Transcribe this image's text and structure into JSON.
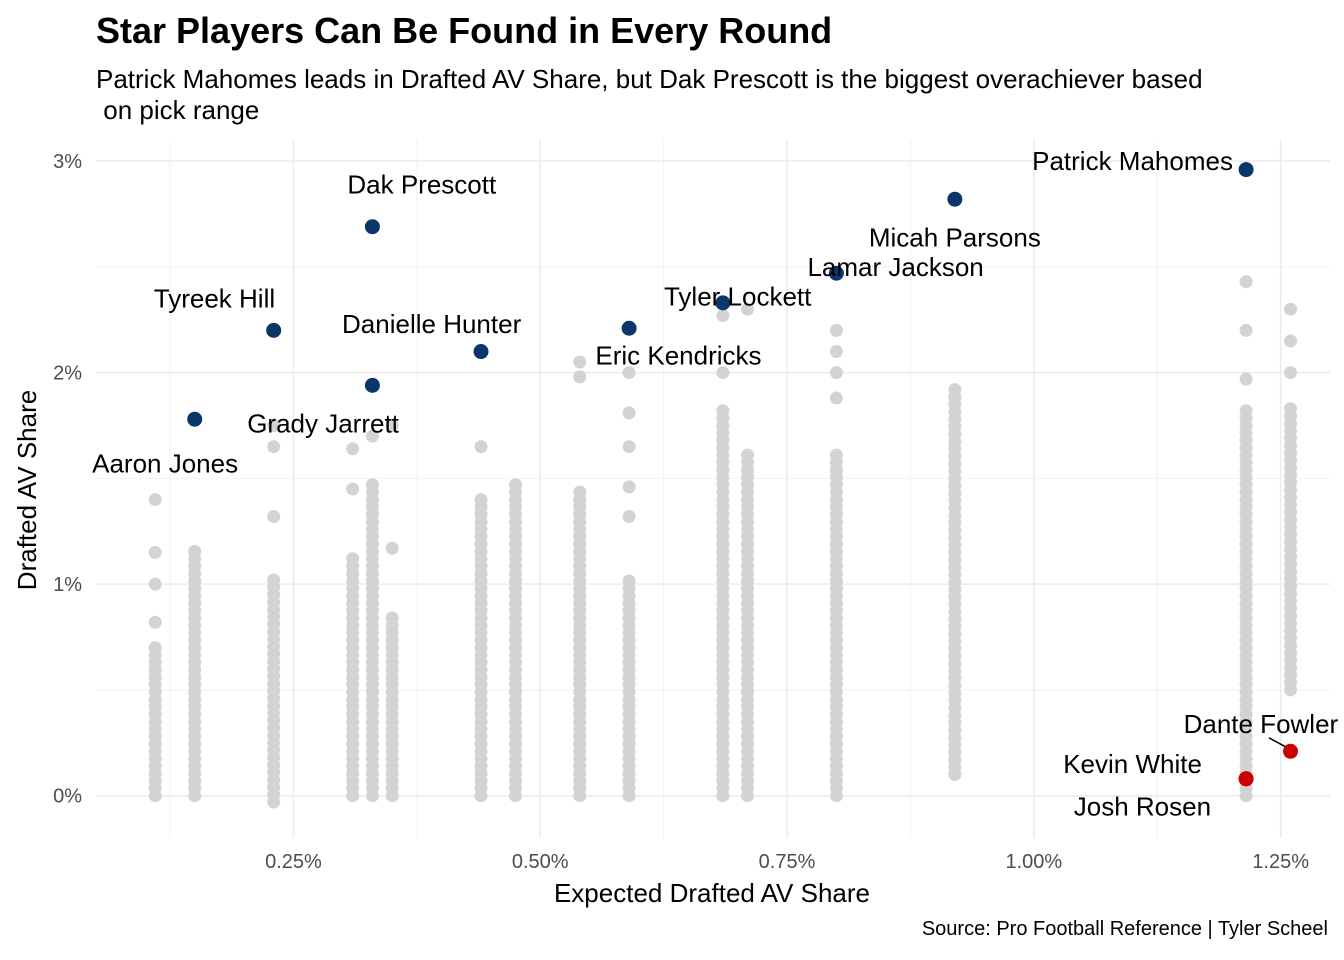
{
  "chart_data": {
    "type": "scatter",
    "title": "Star Players Can Be Found in Every Round",
    "subtitle": "Patrick Mahomes leads in Drafted AV Share, but Dak Prescott is the biggest overachiever based\n on pick range",
    "xlabel": "Expected Drafted AV Share",
    "ylabel": "Drafted AV Share",
    "caption": "Source: Pro Football Reference | Tyler Scheel",
    "xlim": [
      0.05,
      1.3
    ],
    "ylim": [
      -0.2,
      3.1
    ],
    "x_ticks": [
      {
        "value": 0.25,
        "label": "0.25%"
      },
      {
        "value": 0.5,
        "label": "0.50%"
      },
      {
        "value": 0.75,
        "label": "0.75%"
      },
      {
        "value": 1.0,
        "label": "1.00%"
      },
      {
        "value": 1.25,
        "label": "1.25%"
      }
    ],
    "y_ticks": [
      {
        "value": 0,
        "label": "0%"
      },
      {
        "value": 1,
        "label": "1%"
      },
      {
        "value": 2,
        "label": "2%"
      },
      {
        "value": 3,
        "label": "3%"
      }
    ],
    "grid": true,
    "colors": {
      "background_points": "#d3d3d3",
      "overachiever": "#0b3669",
      "underachiever": "#cc0000"
    },
    "background_columns": [
      {
        "x": 0.11,
        "min": 0.0,
        "max": 0.7,
        "extra": [
          0.82,
          1.0,
          1.15,
          1.4
        ]
      },
      {
        "x": 0.15,
        "min": 0.0,
        "max": 1.16
      },
      {
        "x": 0.23,
        "min": -0.03,
        "max": 1.03,
        "extra": [
          1.32,
          1.65,
          1.75
        ]
      },
      {
        "x": 0.31,
        "min": 0.0,
        "max": 1.15,
        "extra": [
          1.45,
          1.64
        ]
      },
      {
        "x": 0.33,
        "min": 0.0,
        "max": 1.5,
        "extra": [
          1.7
        ]
      },
      {
        "x": 0.35,
        "min": 0.0,
        "max": 0.87,
        "extra": [
          1.17,
          1.75
        ]
      },
      {
        "x": 0.44,
        "min": 0.0,
        "max": 1.4,
        "extra": [
          1.65
        ]
      },
      {
        "x": 0.475,
        "min": 0.0,
        "max": 1.48
      },
      {
        "x": 0.54,
        "min": 0.0,
        "max": 1.46,
        "extra": [
          1.98,
          2.05
        ]
      },
      {
        "x": 0.59,
        "min": 0.0,
        "max": 1.03,
        "extra": [
          1.32,
          1.46,
          1.65,
          1.81,
          2.0
        ]
      },
      {
        "x": 0.685,
        "min": 0.0,
        "max": 1.82,
        "extra": [
          2.0,
          2.27
        ]
      },
      {
        "x": 0.71,
        "min": 0.0,
        "max": 1.62,
        "extra": [
          2.3
        ]
      },
      {
        "x": 0.8,
        "min": 0.0,
        "max": 1.64,
        "extra": [
          1.88,
          2.0,
          2.1,
          2.2
        ]
      },
      {
        "x": 0.92,
        "min": 0.1,
        "max": 1.93
      },
      {
        "x": 1.215,
        "min": 0.0,
        "max": 1.83,
        "extra": [
          1.97,
          2.2,
          2.43
        ]
      },
      {
        "x": 1.26,
        "min": 0.5,
        "max": 1.85,
        "extra": [
          2.0,
          2.15,
          2.3
        ]
      }
    ],
    "highlighted": [
      {
        "name": "Patrick Mahomes",
        "x": 1.215,
        "y": 2.96,
        "group": "over",
        "label_x": 1.1,
        "label_y": 3.0
      },
      {
        "name": "Micah Parsons",
        "x": 0.92,
        "y": 2.82,
        "group": "over",
        "label_x": 0.92,
        "label_y": 2.64
      },
      {
        "name": "Dak Prescott",
        "x": 0.33,
        "y": 2.69,
        "group": "over",
        "label_x": 0.38,
        "label_y": 2.89
      },
      {
        "name": "Lamar Jackson",
        "x": 0.8,
        "y": 2.47,
        "group": "over",
        "label_x": 0.86,
        "label_y": 2.5
      },
      {
        "name": "Tyler Lockett",
        "x": 0.685,
        "y": 2.33,
        "group": "over",
        "label_x": 0.7,
        "label_y": 2.36
      },
      {
        "name": "Tyreek Hill",
        "x": 0.23,
        "y": 2.2,
        "group": "over",
        "label_x": 0.17,
        "label_y": 2.35
      },
      {
        "name": "Eric Kendricks",
        "x": 0.59,
        "y": 2.21,
        "group": "over",
        "label_x": 0.64,
        "label_y": 2.08
      },
      {
        "name": "Danielle Hunter",
        "x": 0.44,
        "y": 2.1,
        "group": "over",
        "label_x": 0.39,
        "label_y": 2.23
      },
      {
        "name": "Grady Jarrett",
        "x": 0.33,
        "y": 1.94,
        "group": "over",
        "label_x": 0.28,
        "label_y": 1.76
      },
      {
        "name": "Aaron Jones",
        "x": 0.15,
        "y": 1.78,
        "group": "over",
        "label_x": 0.12,
        "label_y": 1.57
      },
      {
        "name": "Dante Fowler",
        "x": 1.26,
        "y": 0.21,
        "group": "under",
        "label_x": 1.23,
        "label_y": 0.34,
        "leader": true
      },
      {
        "name": "Kevin White",
        "x": 1.215,
        "y": 0.08,
        "group": "under",
        "label_x": 1.1,
        "label_y": 0.15
      },
      {
        "name": "Josh Rosen",
        "x": 1.215,
        "y": 0.08,
        "group": "under",
        "label_x": 1.11,
        "label_y": -0.05
      }
    ]
  }
}
